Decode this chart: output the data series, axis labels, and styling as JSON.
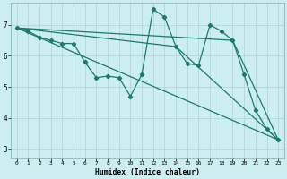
{
  "xlabel": "Humidex (Indice chaleur)",
  "bg_color": "#cdeef0",
  "grid_color": "#aed4d4",
  "line_color": "#1a7a6e",
  "xlim": [
    -0.5,
    23.5
  ],
  "ylim": [
    2.7,
    7.7
  ],
  "xticks": [
    0,
    1,
    2,
    3,
    4,
    5,
    6,
    7,
    8,
    9,
    10,
    11,
    12,
    13,
    14,
    15,
    16,
    17,
    18,
    19,
    20,
    21,
    22,
    23
  ],
  "yticks": [
    3,
    4,
    5,
    6,
    7
  ],
  "series1_x": [
    0,
    1,
    2,
    3,
    4,
    5,
    6,
    7,
    8,
    9,
    10,
    11,
    12,
    13,
    14,
    15,
    16,
    17,
    18,
    19,
    20,
    21,
    22,
    23
  ],
  "series1_y": [
    6.9,
    6.8,
    6.6,
    6.5,
    6.4,
    6.4,
    5.8,
    5.3,
    5.35,
    5.3,
    4.7,
    5.4,
    7.5,
    7.25,
    6.3,
    5.75,
    5.7,
    7.0,
    6.8,
    6.5,
    5.4,
    4.25,
    3.65,
    3.3
  ],
  "series2_x": [
    0,
    23
  ],
  "series2_y": [
    6.9,
    3.3
  ],
  "series3_x": [
    0,
    14,
    23
  ],
  "series3_y": [
    6.9,
    6.3,
    3.3
  ],
  "series4_x": [
    0,
    19,
    23
  ],
  "series4_y": [
    6.9,
    6.5,
    3.3
  ],
  "linewidth": 0.9,
  "markersize": 2.2
}
